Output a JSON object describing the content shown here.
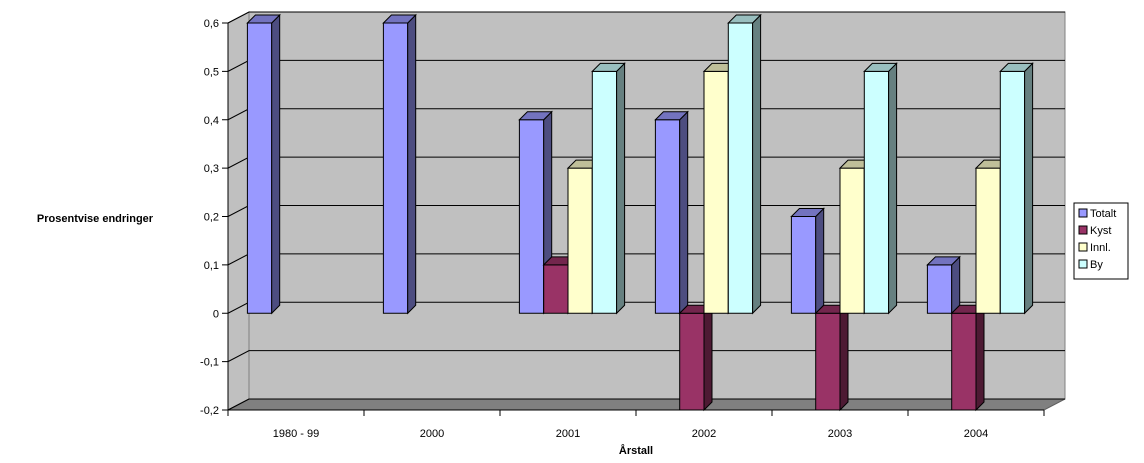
{
  "chart_data": {
    "type": "bar",
    "title": "",
    "xlabel": "Årstall",
    "ylabel": "Prosentvise endringer",
    "categories": [
      "1980 - 99",
      "2000",
      "2001",
      "2002",
      "2003",
      "2004"
    ],
    "yticks": [
      "-0,2",
      "-0,1",
      "0",
      "0,1",
      "0,2",
      "0,3",
      "0,4",
      "0,5",
      "0,6"
    ],
    "ylim": [
      -0.2,
      0.6
    ],
    "grid": true,
    "legend_position": "right",
    "series": [
      {
        "name": "Totalt",
        "color": "#9999FF",
        "values": [
          0.6,
          0.6,
          0.4,
          0.4,
          0.2,
          0.1
        ]
      },
      {
        "name": "Kyst",
        "color": "#993366",
        "values": [
          null,
          null,
          0.1,
          -0.2,
          -0.2,
          -0.2
        ]
      },
      {
        "name": "Innl.",
        "color": "#FFFFCC",
        "values": [
          null,
          null,
          0.3,
          0.5,
          0.3,
          0.3
        ]
      },
      {
        "name": "By",
        "color": "#CCFFFF",
        "values": [
          null,
          null,
          0.5,
          0.6,
          0.5,
          0.5
        ]
      }
    ]
  }
}
